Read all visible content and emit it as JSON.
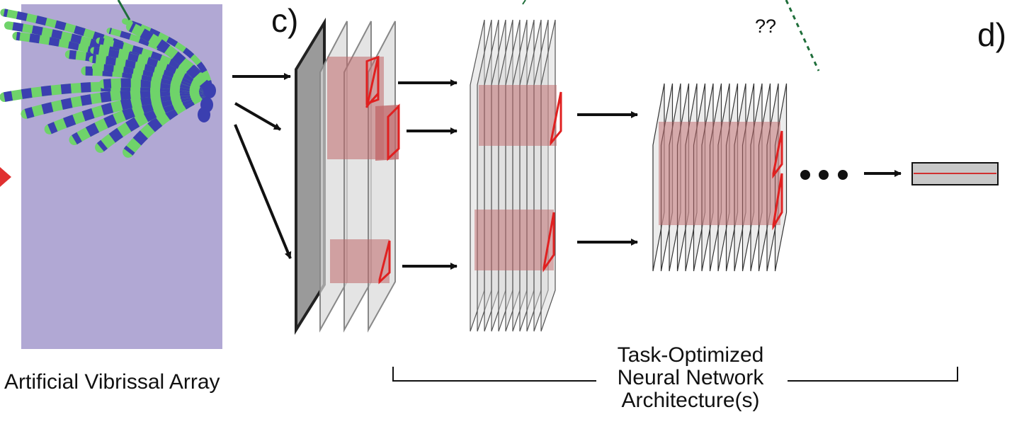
{
  "labels": {
    "panel_c": "c)",
    "panel_d": "d)",
    "question": "??",
    "array_caption": "Artificial Vibrissal Array",
    "network_caption_lines": [
      "Task-Optimized",
      "Neural Network",
      "Architecture(s)"
    ]
  },
  "colors": {
    "array_background": "#b1a8d4",
    "whisker_green": "#6fd36a",
    "whisker_blue": "#3b3fb0",
    "layer_fill": "#c8c8c8",
    "layer_fill_front": "#9a9a9a",
    "receptive_fill": "#c0686a",
    "kernel_outline": "#e02020",
    "arrow": "#111111",
    "dashed_green": "#1f6e3a",
    "red_pointer": "#e03030"
  },
  "icons": {
    "continuation": "ellipsis-dots",
    "output": "output-vector-box"
  }
}
